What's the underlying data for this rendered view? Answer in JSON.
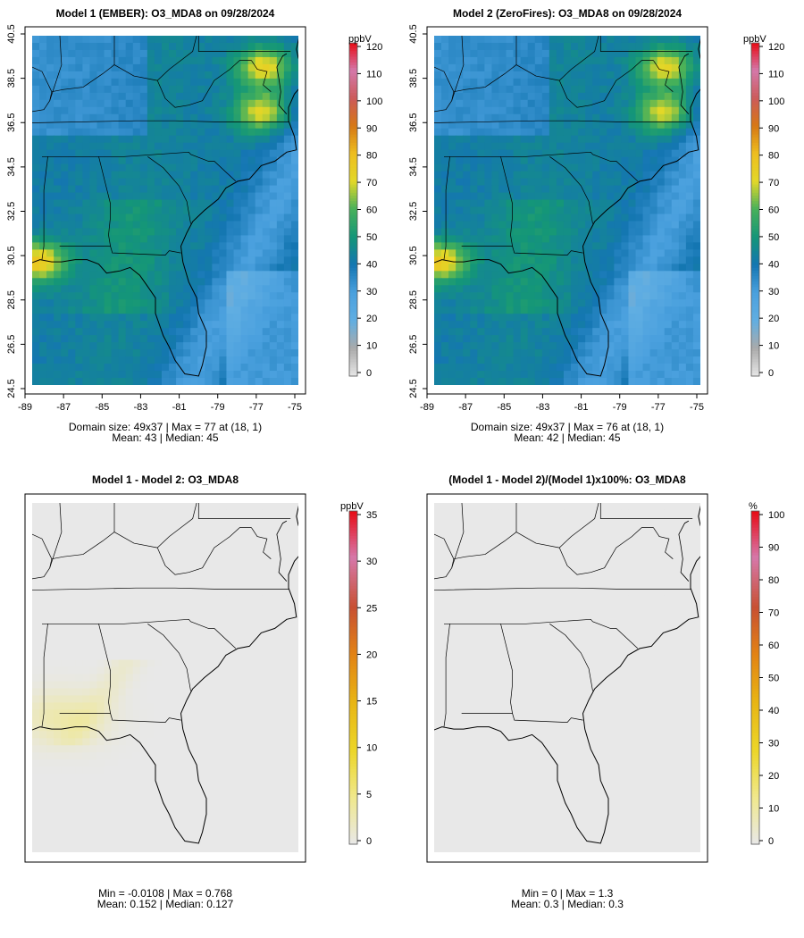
{
  "chart_data": [
    {
      "type": "heatmap",
      "title": "Model 1 (EMBER): O3_MDA8 on 09/28/2024",
      "x_ticks": [
        "-89",
        "-87",
        "-85",
        "-83",
        "-81",
        "-79",
        "-77",
        "-75"
      ],
      "y_ticks": [
        "24.5",
        "26.5",
        "28.5",
        "30.5",
        "32.5",
        "34.5",
        "36.5",
        "38.5",
        "40.5"
      ],
      "xlim": [
        -89,
        -75
      ],
      "ylim": [
        24.5,
        40.5
      ],
      "colorbar": {
        "unit": "ppbV",
        "ticks": [
          "0",
          "10",
          "20",
          "30",
          "40",
          "50",
          "60",
          "70",
          "80",
          "90",
          "100",
          "110",
          "120"
        ],
        "range": [
          0,
          120
        ],
        "palette": "aqi"
      },
      "base_value": 42,
      "stats_line1": "Domain size: 49x37 | Max = 77 at (18, 1)",
      "stats_line2": "Mean: 43 |  Median: 45",
      "features": [
        {
          "name": "gulf-coast-plume",
          "lon": -88.7,
          "lat": 30.3,
          "value": 77
        },
        {
          "name": "chesapeake-plume",
          "lon": -77.2,
          "lat": 39.0,
          "value": 72
        },
        {
          "name": "norfolk-plume",
          "lon": -77.3,
          "lat": 37.0,
          "value": 70
        }
      ]
    },
    {
      "type": "heatmap",
      "title": "Model 2 (ZeroFires): O3_MDA8 on 09/28/2024",
      "x_ticks": [
        "-89",
        "-87",
        "-85",
        "-83",
        "-81",
        "-79",
        "-77",
        "-75"
      ],
      "y_ticks": [
        "24.5",
        "26.5",
        "28.5",
        "30.5",
        "32.5",
        "34.5",
        "36.5",
        "38.5",
        "40.5"
      ],
      "xlim": [
        -89,
        -75
      ],
      "ylim": [
        24.5,
        40.5
      ],
      "colorbar": {
        "unit": "ppbV",
        "ticks": [
          "0",
          "10",
          "20",
          "30",
          "40",
          "50",
          "60",
          "70",
          "80",
          "90",
          "100",
          "110",
          "120"
        ],
        "range": [
          0,
          120
        ],
        "palette": "aqi"
      },
      "base_value": 42,
      "stats_line1": "Domain size: 49x37 | Max = 76 at (18, 1)",
      "stats_line2": "Mean: 42 |  Median: 45",
      "features": [
        {
          "name": "gulf-coast-plume",
          "lon": -88.7,
          "lat": 30.3,
          "value": 76
        },
        {
          "name": "chesapeake-plume",
          "lon": -77.2,
          "lat": 39.0,
          "value": 71
        },
        {
          "name": "norfolk-plume",
          "lon": -77.3,
          "lat": 37.0,
          "value": 69
        }
      ]
    },
    {
      "type": "heatmap",
      "title": "Model 1 - Model 2: O3_MDA8",
      "colorbar": {
        "unit": "ppbV",
        "ticks": [
          "0",
          "5",
          "10",
          "15",
          "20",
          "25",
          "30",
          "35"
        ],
        "range": [
          0,
          35
        ],
        "palette": "diff"
      },
      "base_value": 0.1,
      "stats_line1": "Min = -0.0108 | Max = 0.768",
      "stats_line2": "Mean: 0.152 |  Median: 0.127"
    },
    {
      "type": "heatmap",
      "title": "(Model 1 - Model 2)/(Model 1)x100%: O3_MDA8",
      "colorbar": {
        "unit": "%",
        "ticks": [
          "0",
          "10",
          "20",
          "30",
          "40",
          "50",
          "60",
          "70",
          "80",
          "90",
          "100"
        ],
        "range": [
          0,
          100
        ],
        "palette": "diff"
      },
      "base_value": 0.3,
      "stats_line1": "Min = 0 | Max = 1.3",
      "stats_line2": "Mean: 0.3 |  Median: 0.3"
    }
  ]
}
